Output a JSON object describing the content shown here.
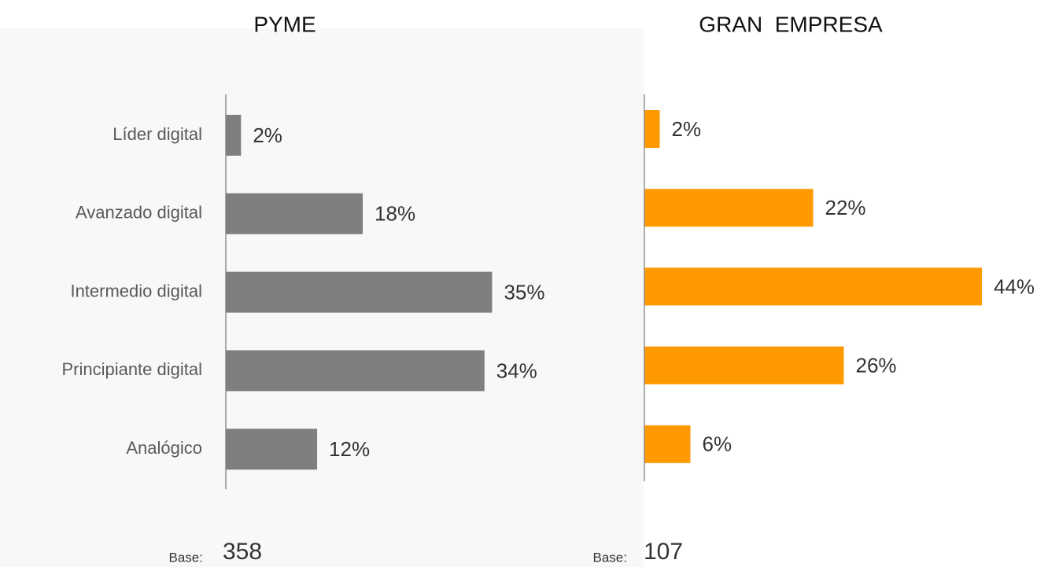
{
  "chart_data": [
    {
      "type": "bar",
      "orientation": "horizontal",
      "title": "PYME",
      "categories": [
        "Líder digital",
        "Avanzado digital",
        "Intermedio digital",
        "Principiante digital",
        "Analógico"
      ],
      "values": [
        2,
        18,
        35,
        34,
        12
      ],
      "value_labels": [
        "2%",
        "18%",
        "35%",
        "34%",
        "12%"
      ],
      "color": "#7f7f7f",
      "base_label": "Base:",
      "base": 358
    },
    {
      "type": "bar",
      "orientation": "horizontal",
      "title": "GRAN  EMPRESA",
      "values": [
        2,
        22,
        44,
        26,
        6
      ],
      "value_labels": [
        "2%",
        "22%",
        "44%",
        "26%",
        "6%"
      ],
      "color": "#ff9900",
      "base_label": "Base:",
      "base": 107
    }
  ]
}
